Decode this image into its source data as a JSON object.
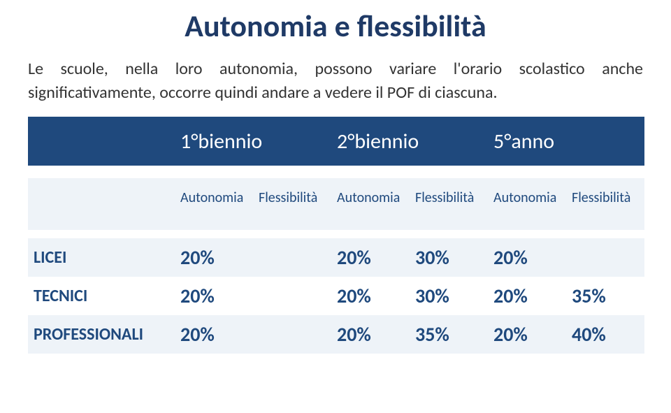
{
  "title": "Autonomia e flessibilità",
  "description": "Le scuole, nella loro autonomia, possono variare l'orario scolastico anche significativamente, occorre quindi andare a vedere il POF di ciascuna.",
  "table": {
    "header": {
      "c1": "1°biennio",
      "c2": "2°biennio",
      "c3": "5°anno"
    },
    "sub": {
      "a1": "Autonomia",
      "f1": "Flessibilità",
      "a2": "Autonomia",
      "f2": "Flessibilità",
      "a3": "Autonomia",
      "f3": "Flessibilità"
    },
    "rows": [
      {
        "label": "LICEI",
        "a1": "20%",
        "f1": "",
        "a2": "20%",
        "f2": "30%",
        "a3": "20%",
        "f3": ""
      },
      {
        "label": "TECNICI",
        "a1": "20%",
        "f1": "",
        "a2": "20%",
        "f2": "30%",
        "a3": "20%",
        "f3": "35%"
      },
      {
        "label": "PROFESSIONALI",
        "a1": "20%",
        "f1": "",
        "a2": "20%",
        "f2": "35%",
        "a3": "20%",
        "f3": "40%"
      }
    ],
    "colors": {
      "header_bg": "#1f497d",
      "header_text": "#ffffff",
      "band_bg": "#eef3f8",
      "text": "#1f497d"
    }
  }
}
